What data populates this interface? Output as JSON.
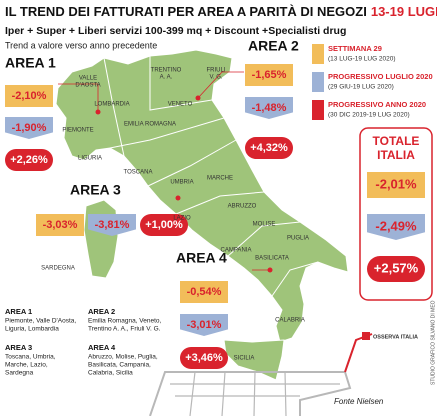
{
  "header": {
    "title": "IL TREND DEI FATTURATI PER AREA A PARITÀ DI NEGOZI",
    "title_dates": "13-19 LUGLIO 2020",
    "subtitle": "Iper + Super + Liberi servizi 100-399 mq + Discount +Specialisti drug",
    "note": "Trend a valore verso anno precedente"
  },
  "legend": [
    {
      "label": "SETTIMANA 29",
      "period": "(13 LUG-19 LUG 2020)"
    },
    {
      "label": "PROGRESSIVO LUGLIO 2020",
      "period": "(29 GIU-19 LUG 2020)"
    },
    {
      "label": "PROGRESSIVO ANNO 2020",
      "period": "(30 DIC 2019-19 LUG 2020)"
    }
  ],
  "areas": [
    {
      "name": "AREA 1",
      "week": "-2,10%",
      "month": "-1,90%",
      "year": "+2,26%"
    },
    {
      "name": "AREA 2",
      "week": "-1,65%",
      "month": "-1,48%",
      "year": "+4,32%"
    },
    {
      "name": "AREA 3",
      "week": "-3,03%",
      "month": "-3,81%",
      "year": "+1,00%"
    },
    {
      "name": "AREA 4",
      "week": "-0,54%",
      "month": "-3,01%",
      "year": "+3,46%"
    }
  ],
  "total": {
    "label_1": "TOTALE",
    "label_2": "ITALIA",
    "week": "-2,01%",
    "month": "-2,49%",
    "year": "+2,57%"
  },
  "regions": [
    {
      "lines": [
        "VALLE",
        "D'AOSTA"
      ]
    },
    {
      "lines": [
        "LOMBARDIA"
      ]
    },
    {
      "lines": [
        "PIEMONTE"
      ]
    },
    {
      "lines": [
        "LIGURIA"
      ]
    },
    {
      "lines": [
        "TRENTINO",
        "A. A."
      ]
    },
    {
      "lines": [
        "FRIULI",
        "V. G."
      ]
    },
    {
      "lines": [
        "VENETO"
      ]
    },
    {
      "lines": [
        "EMILIA ROMAGNA"
      ]
    },
    {
      "lines": [
        "TOSCANA"
      ]
    },
    {
      "lines": [
        "UMBRIA"
      ]
    },
    {
      "lines": [
        "MARCHE"
      ]
    },
    {
      "lines": [
        "LAZIO"
      ]
    },
    {
      "lines": [
        "ABRUZZO"
      ]
    },
    {
      "lines": [
        "MOLISE"
      ]
    },
    {
      "lines": [
        "SARDEGNA"
      ]
    },
    {
      "lines": [
        "CAMPANIA"
      ]
    },
    {
      "lines": [
        "PUGLIA"
      ]
    },
    {
      "lines": [
        "BASILICATA"
      ]
    },
    {
      "lines": [
        "CALABRIA"
      ]
    },
    {
      "lines": [
        "SICILIA"
      ]
    }
  ],
  "area_definitions": [
    {
      "name": "AREA 1",
      "lines": [
        "Piemonte, Valle D'Aosta,",
        "Liguria, Lombardia"
      ]
    },
    {
      "name": "AREA 2",
      "lines": [
        "Emilia Romagna, Veneto,",
        "Trentino A. A., Friuli V. G."
      ]
    },
    {
      "name": "AREA 3",
      "lines": [
        "Toscana, Umbria,",
        "Marche, Lazio,",
        "Sardegna"
      ]
    },
    {
      "name": "AREA 4",
      "lines": [
        "Abruzzo, Molise, Puglia,",
        "Basilicata, Campania,",
        "Calabria, Sicilia"
      ]
    }
  ],
  "source": "Fonte Nielsen",
  "credit": "STUDIO GRAFICO SILVANO DI MEO",
  "logo": "OSSERVA ITALIA"
}
